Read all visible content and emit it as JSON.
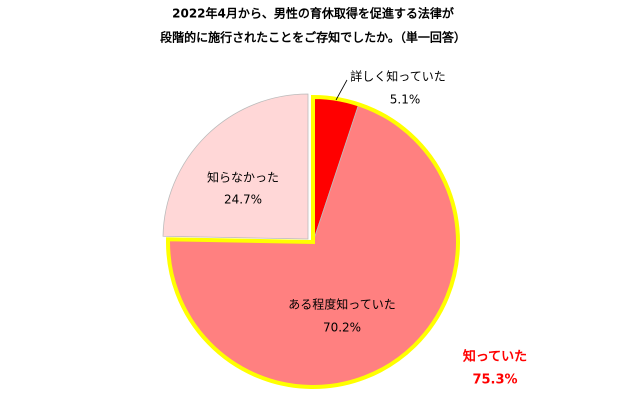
{
  "chart_data": {
    "type": "pie",
    "title": [
      "2022年4月から、男性の育休取得を促進する法律が",
      "段階的に施行されたことをご存知でしたか。（単一回答）"
    ],
    "categories": [
      "詳しく知っていた",
      "ある程度知っていた",
      "知らなかった"
    ],
    "values": [
      5.1,
      70.2,
      24.7
    ],
    "value_labels": [
      "5.1%",
      "70.2%",
      "24.7%"
    ],
    "colors": [
      "#ff0000",
      "#ff8080",
      "#ffd7d7"
    ],
    "annotation": {
      "text": "知っていた",
      "value": 75.3,
      "value_label": "75.3%",
      "color": "#ff0000",
      "outline_color": "#ffff00"
    }
  }
}
